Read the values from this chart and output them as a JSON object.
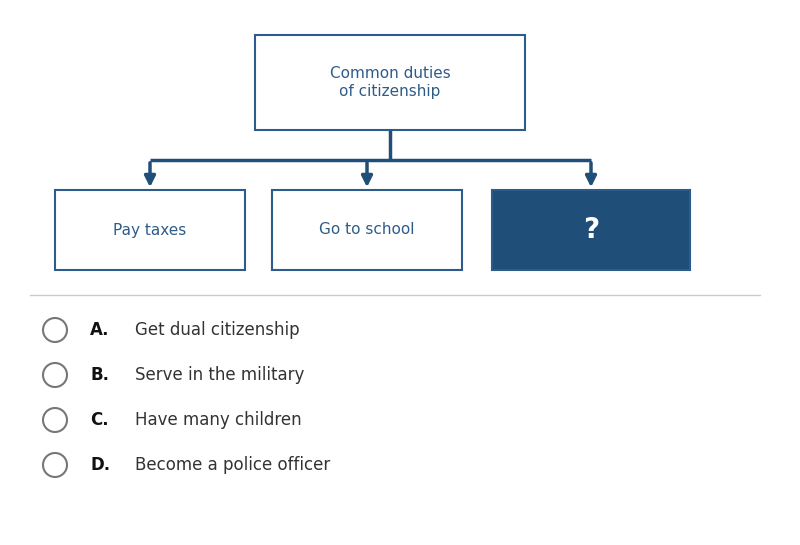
{
  "title": "Common duties\nof citizenship",
  "box_border_color": "#2E5C8A",
  "box_text_color": "#2E5C8A",
  "dark_box_color": "#1F4E79",
  "white_box_fill": "#FFFFFF",
  "bg_color": "#FFFFFF",
  "arrow_color": "#1F4E79",
  "left_label": "Pay taxes",
  "mid_label": "Go to school",
  "right_label": "?",
  "right_text_color": "#FFFFFF",
  "separator_color": "#CCCCCC",
  "options": [
    {
      "letter": "A.",
      "text": "Get dual citizenship"
    },
    {
      "letter": "B.",
      "text": "Serve in the military"
    },
    {
      "letter": "C.",
      "text": "Have many children"
    },
    {
      "letter": "D.",
      "text": "Become a police officer"
    }
  ],
  "font_size_title": 11,
  "font_size_boxes": 11,
  "font_size_options": 12,
  "fig_w": 8.0,
  "fig_h": 5.45
}
